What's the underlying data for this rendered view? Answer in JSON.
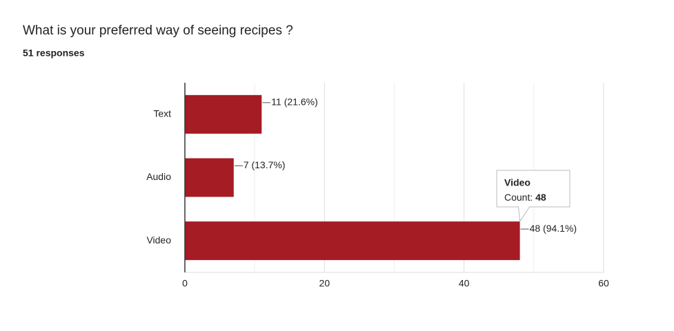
{
  "chart_data": {
    "type": "bar",
    "orientation": "horizontal",
    "title": "What is your preferred way of seeing recipes ?",
    "subtitle": "51 responses",
    "categories": [
      "Text",
      "Audio",
      "Video"
    ],
    "values": [
      11,
      7,
      48
    ],
    "value_labels": [
      "11 (21.6%)",
      "7 (13.7%)",
      "48 (94.1%)"
    ],
    "color": "#a51c24",
    "xlim": [
      0,
      60
    ],
    "xticks": [
      0,
      20,
      40,
      60
    ],
    "minor_gridlines": [
      10,
      30,
      50
    ],
    "grid": true,
    "tooltip": {
      "category": "Video",
      "label": "Count:",
      "value": 48
    }
  }
}
